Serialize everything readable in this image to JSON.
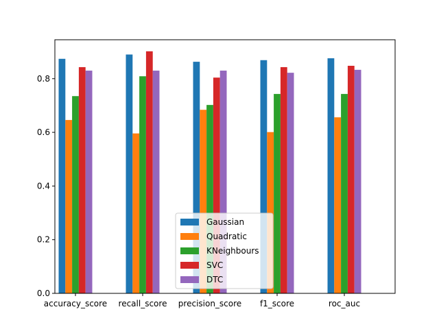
{
  "chart_data": {
    "type": "bar",
    "title": "",
    "xlabel": "",
    "ylabel": "",
    "categories": [
      "accuracy_score",
      "recall_score",
      "precision_score",
      "f1_score",
      "roc_auc"
    ],
    "series": [
      {
        "name": "Gaussian",
        "color": "#1f77b4",
        "values": [
          0.874,
          0.89,
          0.863,
          0.869,
          0.876
        ]
      },
      {
        "name": "Quadratic",
        "color": "#ff7f0e",
        "values": [
          0.646,
          0.596,
          0.684,
          0.601,
          0.656
        ]
      },
      {
        "name": "KNeighbours",
        "color": "#2ca02c",
        "values": [
          0.735,
          0.809,
          0.702,
          0.743,
          0.743
        ]
      },
      {
        "name": "SVC",
        "color": "#d62728",
        "values": [
          0.843,
          0.902,
          0.804,
          0.843,
          0.848
        ]
      },
      {
        "name": "DTC",
        "color": "#9467bd",
        "values": [
          0.83,
          0.83,
          0.83,
          0.822,
          0.833
        ]
      }
    ],
    "ylim": [
      0,
      0.945
    ],
    "yticks": [
      0.0,
      0.2,
      0.4,
      0.6,
      0.8
    ],
    "ytick_labels": [
      "0.0",
      "0.2",
      "0.4",
      "0.6",
      "0.8"
    ],
    "grid": false,
    "legend": "lower-center"
  }
}
